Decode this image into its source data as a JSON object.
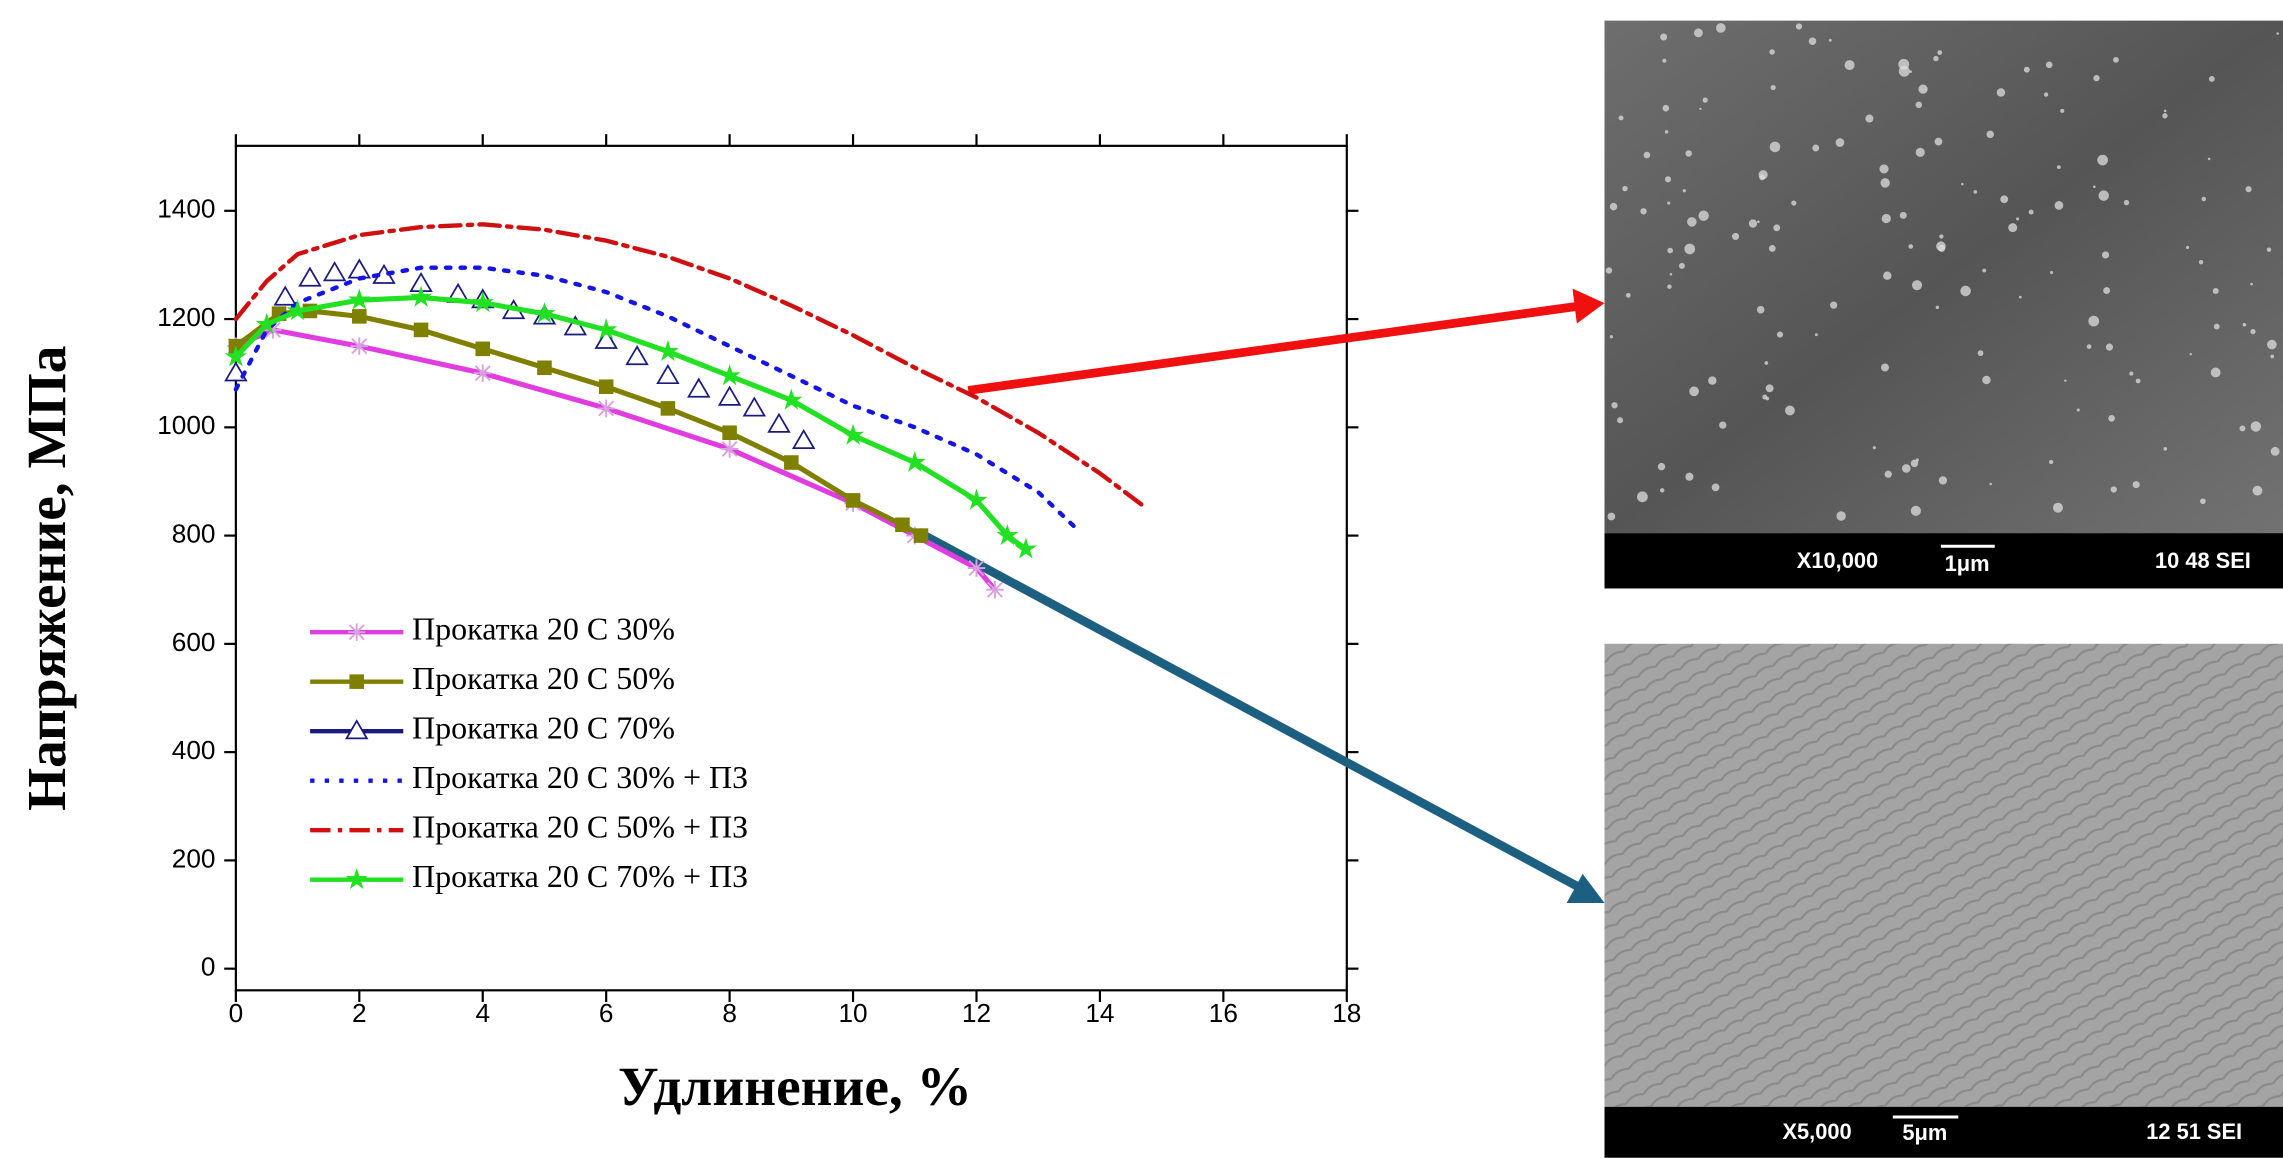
{
  "chart_data": {
    "type": "line",
    "ylabel": "Напряжение, МПа",
    "xlabel": "Удлинение, %",
    "xlim": [
      0,
      18
    ],
    "ylim": [
      -40,
      1520
    ],
    "xticks": [
      0,
      2,
      4,
      6,
      8,
      10,
      12,
      14,
      16,
      18
    ],
    "yticks": [
      0,
      200,
      400,
      600,
      800,
      1000,
      1200,
      1400
    ],
    "grid": false,
    "legend": "lower left",
    "series": [
      {
        "name": "Прокатка 20 С 30%",
        "color": "#e03ce0",
        "linestyle": "solid",
        "marker": "star-x",
        "x": [
          0,
          0.6,
          2,
          4,
          6,
          8,
          10,
          11,
          12,
          12.3
        ],
        "values": [
          1150,
          1180,
          1150,
          1100,
          1035,
          960,
          860,
          800,
          740,
          700
        ]
      },
      {
        "name": "Прокатка 20 С 50%",
        "color": "#7f7f00",
        "linestyle": "solid",
        "marker": "square",
        "x": [
          0,
          0.7,
          1.2,
          2,
          3,
          4,
          5,
          6,
          7,
          8,
          9,
          10,
          10.8,
          11.1
        ],
        "values": [
          1150,
          1210,
          1215,
          1205,
          1180,
          1145,
          1110,
          1075,
          1035,
          990,
          935,
          865,
          820,
          800
        ]
      },
      {
        "name": "Прокатка 20 С  70%",
        "color": "#1a1a80",
        "linestyle": "none",
        "marker": "triangle",
        "x": [
          0,
          0.8,
          1.2,
          1.6,
          2,
          2.4,
          3,
          3.6,
          4,
          4.5,
          5,
          5.5,
          6,
          6.5,
          7,
          7.5,
          8,
          8.4,
          8.8,
          9.2
        ],
        "values": [
          1100,
          1240,
          1275,
          1285,
          1290,
          1280,
          1265,
          1245,
          1235,
          1215,
          1205,
          1185,
          1160,
          1130,
          1095,
          1070,
          1055,
          1035,
          1005,
          975
        ]
      },
      {
        "name": "Прокатка 20 С 30% + ПЗ",
        "color": "#1414e6",
        "linestyle": "dotted",
        "marker": "none",
        "x": [
          0,
          0.5,
          1,
          2,
          3,
          4,
          5,
          6,
          7,
          8,
          9,
          10,
          11,
          12,
          13,
          13.6
        ],
        "values": [
          1070,
          1180,
          1230,
          1275,
          1295,
          1295,
          1280,
          1250,
          1205,
          1150,
          1095,
          1040,
          1000,
          950,
          880,
          815
        ]
      },
      {
        "name": "Прокатка 20 С 50% + ПЗ",
        "color": "#d01010",
        "linestyle": "dashdot",
        "marker": "none",
        "x": [
          0,
          0.5,
          1,
          2,
          3,
          4,
          5,
          6,
          7,
          8,
          9,
          10,
          11,
          12,
          13,
          14,
          14.7
        ],
        "values": [
          1200,
          1270,
          1320,
          1355,
          1370,
          1375,
          1365,
          1345,
          1315,
          1275,
          1225,
          1170,
          1110,
          1055,
          990,
          915,
          855
        ]
      },
      {
        "name": "Прокатка 20 С 70% + ПЗ",
        "color": "#22e022",
        "linestyle": "solid",
        "marker": "star",
        "x": [
          0,
          0.5,
          1,
          2,
          3,
          4,
          5,
          6,
          7,
          8,
          9,
          10,
          11,
          12,
          12.5,
          12.8
        ],
        "values": [
          1130,
          1190,
          1215,
          1235,
          1240,
          1230,
          1210,
          1180,
          1140,
          1095,
          1050,
          985,
          935,
          865,
          800,
          775
        ]
      }
    ]
  },
  "images": [
    {
      "magnification": "X10,000",
      "scale": "1μm",
      "info": "10 48 SEI"
    },
    {
      "magnification": "X5,000",
      "scale": "5μm",
      "info": "12 51 SEI"
    }
  ]
}
